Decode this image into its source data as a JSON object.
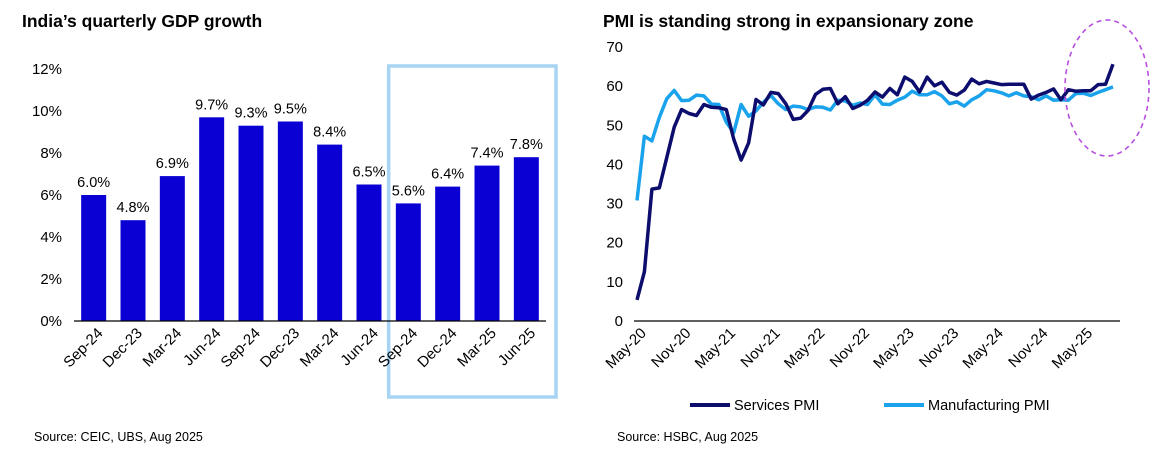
{
  "chart_data": [
    {
      "type": "bar",
      "title": "India’s quarterly GDP growth",
      "categories": [
        "Sep-24",
        "Dec-23",
        "Mar-24",
        "Jun-24",
        "Sep-24",
        "Dec-23",
        "Mar-24",
        "Jun-24",
        "Sep-24",
        "Dec-24",
        "Mar-25",
        "Jun-25"
      ],
      "values": [
        6.0,
        4.8,
        6.9,
        9.7,
        9.3,
        9.5,
        8.4,
        6.5,
        5.6,
        6.4,
        7.4,
        7.8
      ],
      "data_labels": [
        "6.0%",
        "4.8%",
        "6.9%",
        "9.7%",
        "9.3%",
        "9.5%",
        "8.4%",
        "6.5%",
        "5.6%",
        "6.4%",
        "7.4%",
        "7.8%"
      ],
      "ylim": [
        0,
        12
      ],
      "yticks": [
        "0%",
        "2%",
        "4%",
        "6%",
        "8%",
        "10%",
        "12%"
      ],
      "bar_color": "#0a00d4",
      "highlight_color": "#a8d4f4",
      "highlight_range": [
        8,
        11
      ],
      "grid": false,
      "source": "Source: CEIC, UBS, Aug 2025"
    },
    {
      "type": "line",
      "title": "PMI is standing strong in expansionary zone",
      "ylim": [
        0,
        70
      ],
      "yticks": [
        "0",
        "10",
        "20",
        "30",
        "40",
        "50",
        "60",
        "70"
      ],
      "xticks": [
        "May-20",
        "Nov-20",
        "May-21",
        "Nov-21",
        "May-22",
        "Nov-22",
        "May-23",
        "Nov-23",
        "May-24",
        "Nov-24",
        "May-25"
      ],
      "x_range": [
        "May-20",
        "Jul-25"
      ],
      "series": [
        {
          "name": "Services PMI",
          "color": "#0d0d6e",
          "values": [
            5.4,
            12.6,
            33.7,
            34.0,
            41.8,
            49.5,
            54.0,
            53.0,
            52.5,
            55.3,
            54.6,
            54.5,
            54.0,
            46.5,
            41.1,
            45.5,
            56.6,
            55.2,
            58.4,
            58.1,
            55.5,
            51.5,
            51.8,
            53.8,
            57.9,
            59.2,
            59.4,
            55.5,
            57.3,
            54.3,
            55.1,
            56.4,
            58.5,
            57.2,
            59.4,
            57.8,
            62.3,
            61.2,
            58.5,
            62.3,
            60.1,
            61.0,
            58.4,
            57.7,
            59.0,
            61.8,
            60.6,
            61.2,
            60.8,
            60.4,
            60.5,
            60.5,
            60.5,
            56.7,
            57.7,
            58.4,
            59.3,
            56.5,
            59.1,
            58.7,
            58.8,
            58.8,
            60.4,
            60.5,
            65.6
          ],
          "circled_tail": true
        },
        {
          "name": "Manufacturing PMI",
          "color": "#1aa3ec",
          "values": [
            30.8,
            47.2,
            46.0,
            52.0,
            56.8,
            58.9,
            56.3,
            56.4,
            57.7,
            57.5,
            55.4,
            55.3,
            50.8,
            48.1,
            55.3,
            52.3,
            53.7,
            55.9,
            57.6,
            55.5,
            54.0,
            54.9,
            54.7,
            54.0,
            54.7,
            54.6,
            53.9,
            56.4,
            56.2,
            55.1,
            55.7,
            55.3,
            57.8,
            55.4,
            55.3,
            56.4,
            57.2,
            58.7,
            57.8,
            57.8,
            58.6,
            57.5,
            55.5,
            56.0,
            54.9,
            56.5,
            57.5,
            59.1,
            58.8,
            58.3,
            57.5,
            58.3,
            57.5,
            57.3,
            56.5,
            57.5,
            56.4,
            56.5,
            56.4,
            58.1,
            58.2,
            57.6,
            58.4,
            59.1,
            59.8
          ],
          "circled_tail": false
        }
      ],
      "annotation": "dashed circle around latest readings",
      "annotation_color": "#b84fe0",
      "legend_position": "bottom",
      "grid": false,
      "source": "Source: HSBC, Aug 2025"
    }
  ]
}
